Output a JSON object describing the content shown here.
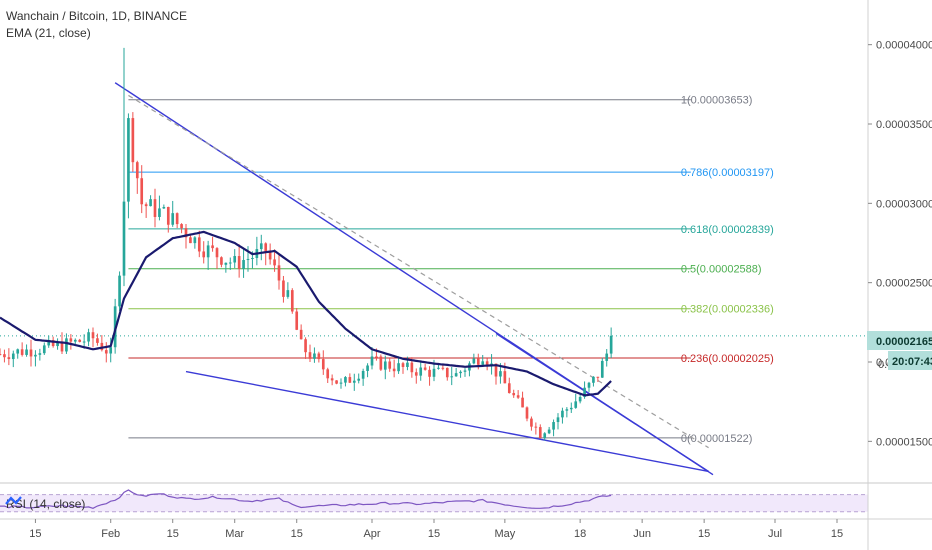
{
  "header": {
    "symbol_line": "Wanchain / Bitcoin, 1D, BINANCE",
    "indicator_line": "EMA (21, close)"
  },
  "rsi": {
    "label": "RSI (14, close)"
  },
  "price_tag": {
    "value": "0.00002165",
    "countdown": "20:07:43",
    "partial_label": "0.0"
  },
  "colors": {
    "bull_candle": "#26a69a",
    "bear_candle": "#ef5350",
    "ema_line": "#1a1a6e",
    "trendline": "#3b3bd6",
    "dashed_line": "#9e9e9e",
    "rsi_line": "#7e57c2",
    "rsi_band": "#f1e8fb",
    "price_tag_bg": "#b2dfdb"
  },
  "chart_data": {
    "type": "candlestick",
    "title": "Wanchain / Bitcoin, 1D, BINANCE",
    "ylim": [
      1.25e-05,
      4.25e-05
    ],
    "x_range": [
      "2019-01-07",
      "2019-07-22"
    ],
    "y_ticks": [
      {
        "value": 1.5e-05,
        "label": "0.00001500"
      },
      {
        "value": 2e-05,
        "label": "0.00002000"
      },
      {
        "value": 2.5e-05,
        "label": "0.00002500"
      },
      {
        "value": 3e-05,
        "label": "0.00003000"
      },
      {
        "value": 3.5e-05,
        "label": "0.00003500"
      },
      {
        "value": 4e-05,
        "label": "0.00004000"
      }
    ],
    "x_ticks": [
      {
        "date": "2019-01-15",
        "label": "15"
      },
      {
        "date": "2019-02-01",
        "label": "Feb"
      },
      {
        "date": "2019-02-15",
        "label": "15"
      },
      {
        "date": "2019-03-01",
        "label": "Mar"
      },
      {
        "date": "2019-03-15",
        "label": "15"
      },
      {
        "date": "2019-04-01",
        "label": "Apr"
      },
      {
        "date": "2019-04-15",
        "label": "15"
      },
      {
        "date": "2019-05-01",
        "label": "May"
      },
      {
        "date": "2019-05-18",
        "label": "18"
      },
      {
        "date": "2019-06-01",
        "label": "Jun"
      },
      {
        "date": "2019-06-15",
        "label": "15"
      },
      {
        "date": "2019-07-01",
        "label": "Jul"
      },
      {
        "date": "2019-07-15",
        "label": "15"
      }
    ],
    "fib_levels": [
      {
        "ratio": 1,
        "value": 3.653e-05,
        "label": "1(0.00003653)",
        "color": "#787b86"
      },
      {
        "ratio": 0.786,
        "value": 3.197e-05,
        "label": "0.786(0.00003197)",
        "color": "#2196f3"
      },
      {
        "ratio": 0.618,
        "value": 2.839e-05,
        "label": "0.618(0.00002839)",
        "color": "#26a69a"
      },
      {
        "ratio": 0.5,
        "value": 2.588e-05,
        "label": "0.5(0.00002588)",
        "color": "#4caf50"
      },
      {
        "ratio": 0.382,
        "value": 2.336e-05,
        "label": "0.382(0.00002336)",
        "color": "#8bc34a"
      },
      {
        "ratio": 0.236,
        "value": 2.025e-05,
        "label": "0.236(0.00002025)",
        "color": "#c62828"
      },
      {
        "ratio": 0,
        "value": 1.522e-05,
        "label": "0(0.00001522)",
        "color": "#787b86"
      }
    ],
    "fib_start": "2019-02-05",
    "fib_end": "2019-06-12",
    "trendlines": [
      {
        "name": "upper",
        "from": [
          "2019-02-02",
          3.76e-05
        ],
        "to": [
          "2019-06-17",
          1.29e-05
        ]
      },
      {
        "name": "lower",
        "from": [
          "2019-02-18",
          1.94e-05
        ],
        "to": [
          "2019-06-16",
          1.31e-05
        ]
      },
      {
        "name": "breakout",
        "from": [
          "2019-04-29",
          2.18e-05
        ],
        "to": [
          "2019-06-16",
          1.31e-05
        ]
      }
    ],
    "dashed_line": {
      "from": [
        "2019-02-05",
        3.68e-05
      ],
      "to": [
        "2019-06-16",
        1.46e-05
      ]
    },
    "last_price": 2.165e-05,
    "ema_anchors": [
      [
        "2019-01-07",
        2.28e-05
      ],
      [
        "2019-01-15",
        2.14e-05
      ],
      [
        "2019-01-22",
        2.12e-05
      ],
      [
        "2019-01-28",
        2.08e-05
      ],
      [
        "2019-02-01",
        2.1e-05
      ],
      [
        "2019-02-04",
        2.4e-05
      ],
      [
        "2019-02-09",
        2.66e-05
      ],
      [
        "2019-02-15",
        2.78e-05
      ],
      [
        "2019-02-22",
        2.82e-05
      ],
      [
        "2019-03-01",
        2.75e-05
      ],
      [
        "2019-03-05",
        2.68e-05
      ],
      [
        "2019-03-10",
        2.7e-05
      ],
      [
        "2019-03-15",
        2.6e-05
      ],
      [
        "2019-03-20",
        2.38e-05
      ],
      [
        "2019-03-26",
        2.21e-05
      ],
      [
        "2019-04-01",
        2.08e-05
      ],
      [
        "2019-04-08",
        2.02e-05
      ],
      [
        "2019-04-15",
        1.99e-05
      ],
      [
        "2019-04-22",
        1.97e-05
      ],
      [
        "2019-04-29",
        1.98e-05
      ],
      [
        "2019-05-06",
        1.94e-05
      ],
      [
        "2019-05-12",
        1.86e-05
      ],
      [
        "2019-05-19",
        1.79e-05
      ],
      [
        "2019-05-22",
        1.8e-05
      ],
      [
        "2019-05-25",
        1.88e-05
      ]
    ],
    "rsi_values": [
      [
        "2019-01-07",
        42
      ],
      [
        "2019-01-14",
        40
      ],
      [
        "2019-01-21",
        44
      ],
      [
        "2019-01-28",
        40
      ],
      [
        "2019-02-02",
        58
      ],
      [
        "2019-02-05",
        80
      ],
      [
        "2019-02-08",
        66
      ],
      [
        "2019-02-12",
        72
      ],
      [
        "2019-02-18",
        60
      ],
      [
        "2019-02-25",
        64
      ],
      [
        "2019-03-04",
        55
      ],
      [
        "2019-03-11",
        60
      ],
      [
        "2019-03-15",
        42
      ],
      [
        "2019-03-22",
        44
      ],
      [
        "2019-03-29",
        47
      ],
      [
        "2019-04-05",
        50
      ],
      [
        "2019-04-12",
        48
      ],
      [
        "2019-04-19",
        53
      ],
      [
        "2019-04-26",
        56
      ],
      [
        "2019-05-03",
        44
      ],
      [
        "2019-05-09",
        38
      ],
      [
        "2019-05-15",
        47
      ],
      [
        "2019-05-19",
        55
      ],
      [
        "2019-05-22",
        63
      ],
      [
        "2019-05-25",
        68
      ]
    ]
  }
}
